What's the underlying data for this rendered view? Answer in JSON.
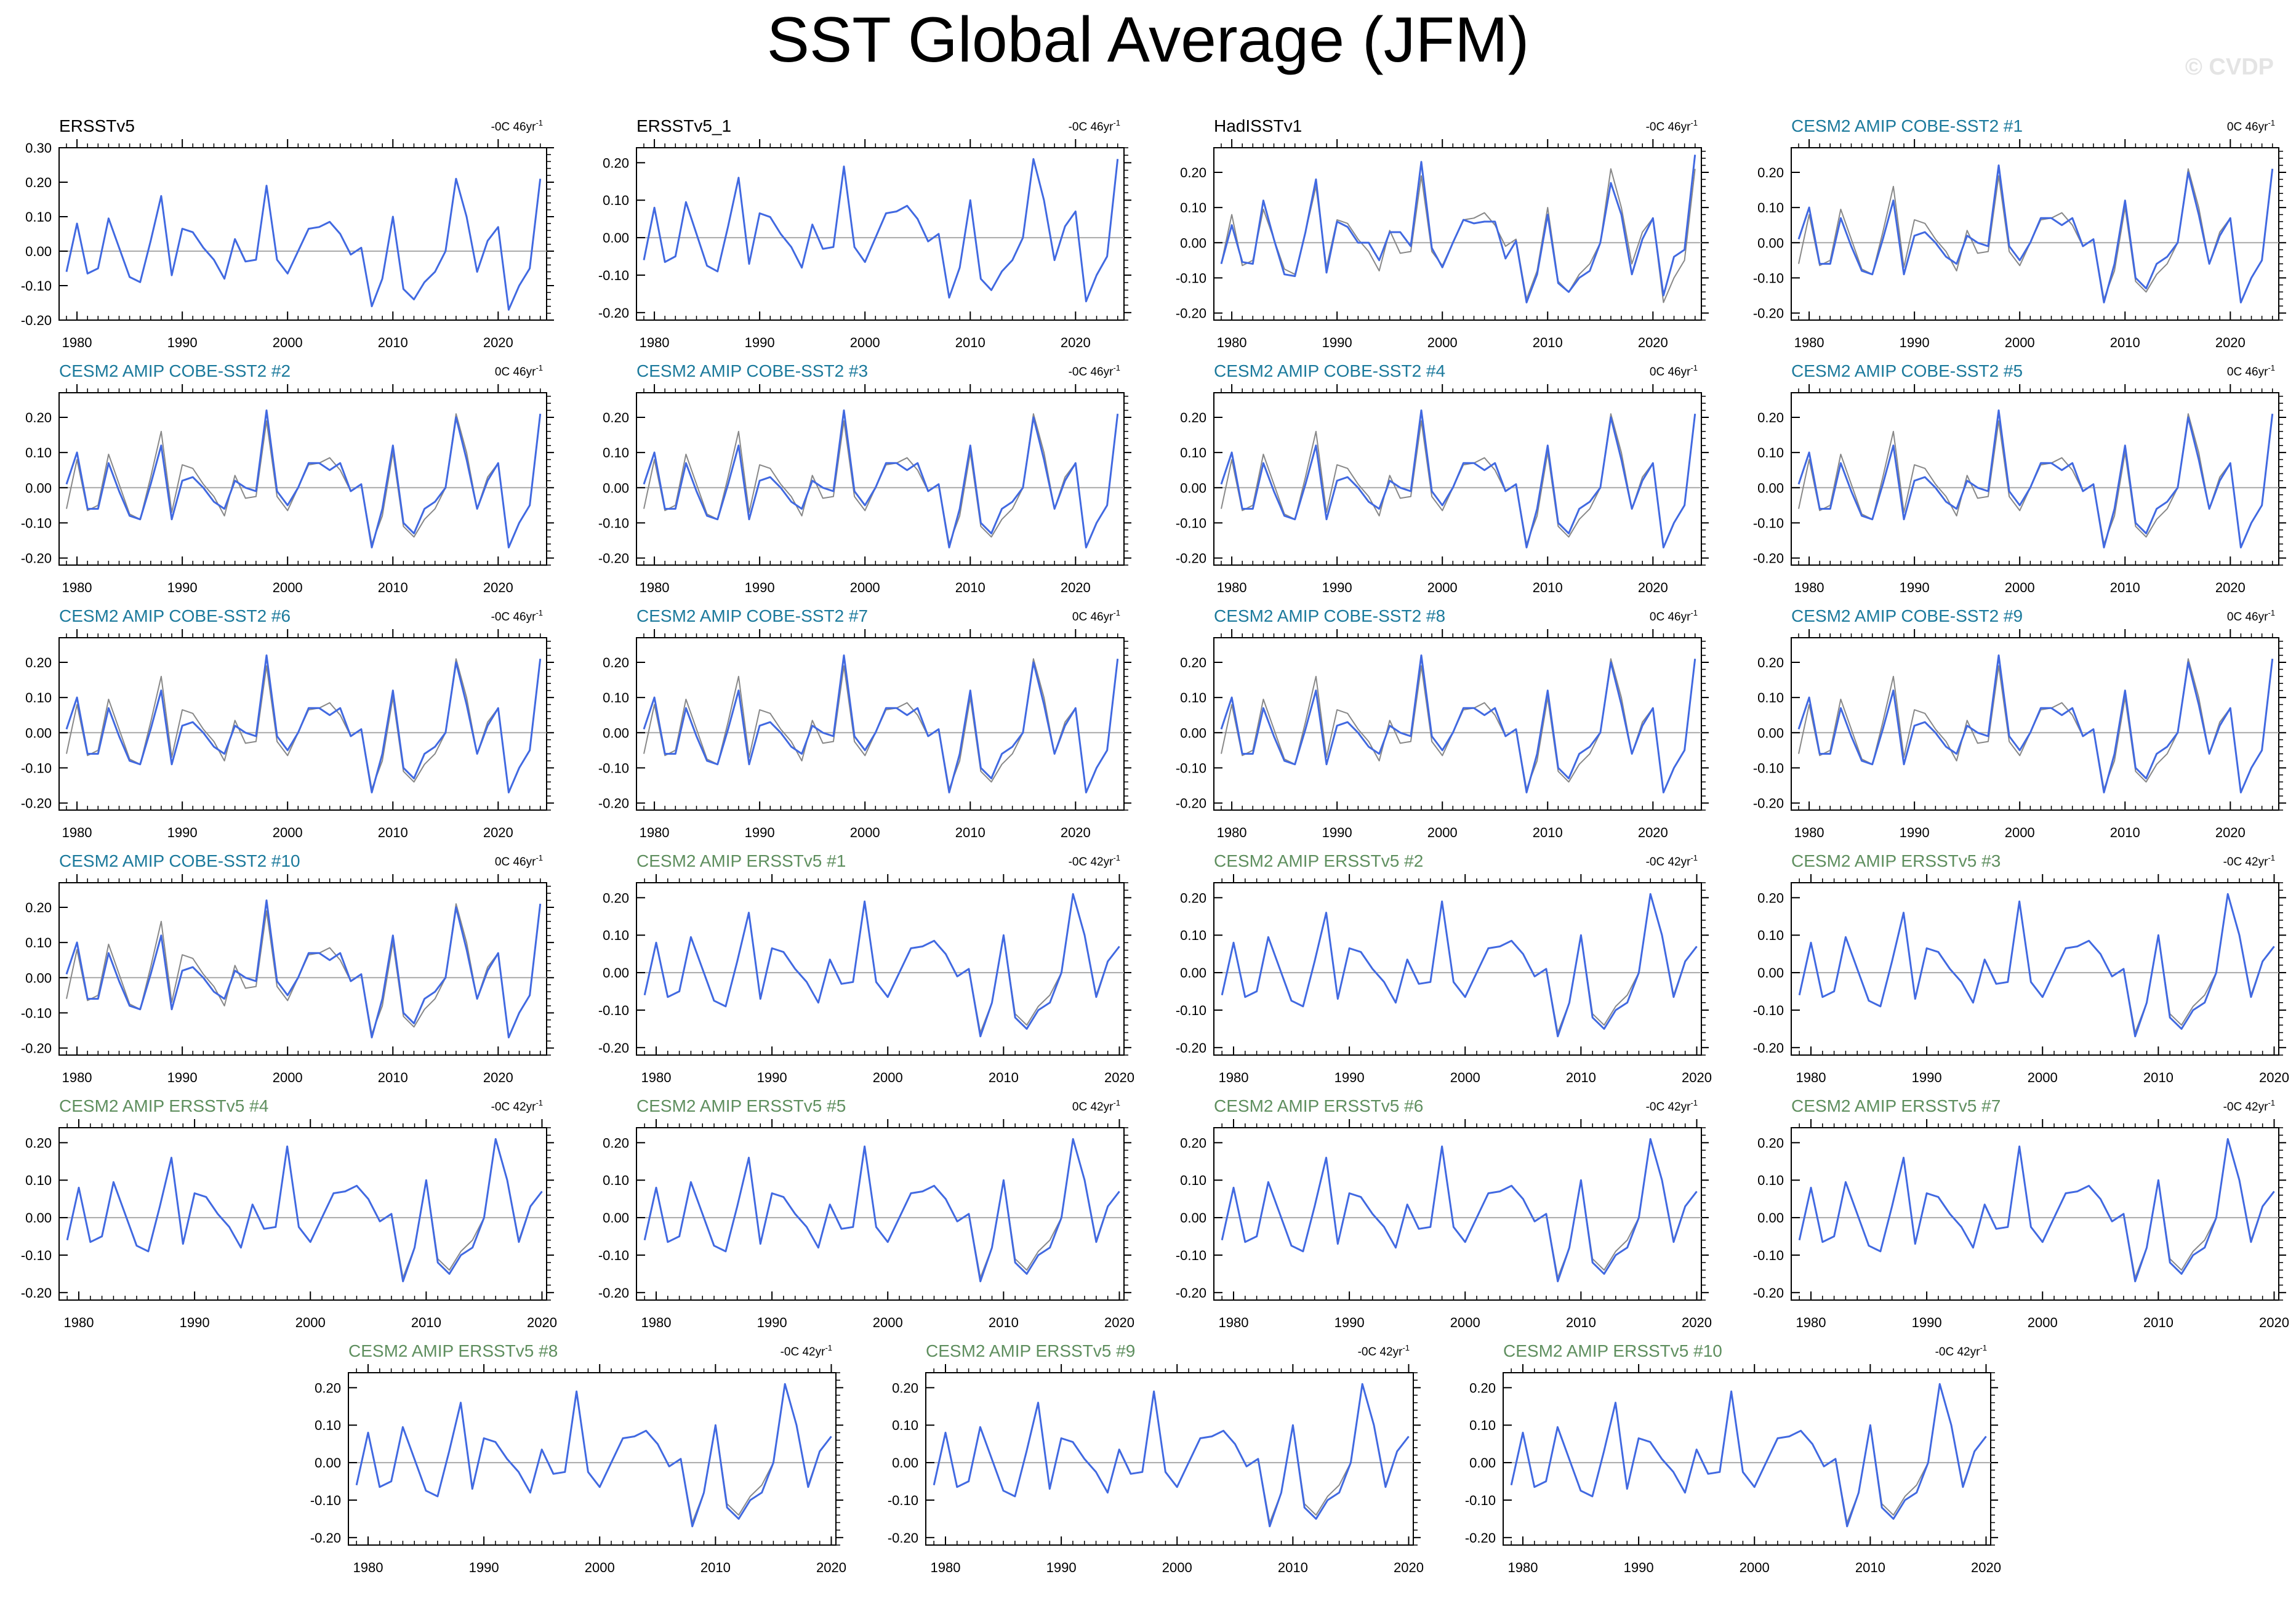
{
  "title": "SST Global Average (JFM)",
  "watermark": "© CVDP",
  "colors": {
    "observation_line": "#888888",
    "model_line": "#4169E1",
    "zero_line": "#aaaaaa",
    "title_obs": "#000000",
    "title_cobe": "#1c7a9c",
    "title_ersst": "#5f8f5f"
  },
  "chart_data": {
    "type": "line",
    "years_long": [
      1979,
      1980,
      1981,
      1982,
      1983,
      1984,
      1985,
      1986,
      1987,
      1988,
      1989,
      1990,
      1991,
      1992,
      1993,
      1994,
      1995,
      1996,
      1997,
      1998,
      1999,
      2000,
      2001,
      2002,
      2003,
      2004,
      2005,
      2006,
      2007,
      2008,
      2009,
      2010,
      2011,
      2012,
      2013,
      2014,
      2015,
      2016,
      2017,
      2018,
      2019,
      2020,
      2021,
      2022,
      2023,
      2024
    ],
    "years_short": [
      1979,
      1980,
      1981,
      1982,
      1983,
      1984,
      1985,
      1986,
      1987,
      1988,
      1989,
      1990,
      1991,
      1992,
      1993,
      1994,
      1995,
      1996,
      1997,
      1998,
      1999,
      2000,
      2001,
      2002,
      2003,
      2004,
      2005,
      2006,
      2007,
      2008,
      2009,
      2010,
      2011,
      2012,
      2013,
      2014,
      2015,
      2016,
      2017,
      2018,
      2019,
      2020
    ],
    "xticks": [
      1980,
      1990,
      2000,
      2010,
      2020
    ],
    "grid": false,
    "panels": [
      {
        "title": "ERSSTv5",
        "title_color": "obs",
        "trend": "-0C 46yr",
        "trend_sup": "-1",
        "years": "long",
        "ylim": [
          -0.2,
          0.3
        ],
        "yticks": [
          "0.30",
          "0.20",
          "0.10",
          "0.00",
          "-0.10",
          "-0.20"
        ],
        "overlay": "none",
        "variant": "obs"
      },
      {
        "title": "ERSSTv5_1",
        "title_color": "obs",
        "trend": "-0C 46yr",
        "trend_sup": "-1",
        "years": "long",
        "ylim": [
          -0.22,
          0.24
        ],
        "yticks": [
          "0.20",
          "0.10",
          "0.00",
          "-0.10",
          "-0.20"
        ],
        "overlay": "none",
        "variant": "obs"
      },
      {
        "title": "HadISSTv1",
        "title_color": "obs",
        "trend": "-0C 46yr",
        "trend_sup": "-1",
        "years": "long",
        "ylim": [
          -0.22,
          0.27
        ],
        "yticks": [
          "0.20",
          "0.10",
          "0.00",
          "-0.10",
          "-0.20"
        ],
        "overlay": "obs",
        "variant": "had"
      },
      {
        "title": "CESM2 AMIP COBE-SST2 #1",
        "title_color": "cobe",
        "trend": "0C 46yr",
        "trend_sup": "-1",
        "years": "long",
        "ylim": [
          -0.22,
          0.27
        ],
        "yticks": [
          "0.20",
          "0.10",
          "0.00",
          "-0.10",
          "-0.20"
        ],
        "overlay": "obs",
        "variant": "cobe"
      },
      {
        "title": "CESM2 AMIP COBE-SST2 #2",
        "title_color": "cobe",
        "trend": "0C 46yr",
        "trend_sup": "-1",
        "years": "long",
        "ylim": [
          -0.22,
          0.27
        ],
        "yticks": [
          "0.20",
          "0.10",
          "0.00",
          "-0.10",
          "-0.20"
        ],
        "overlay": "obs",
        "variant": "cobe"
      },
      {
        "title": "CESM2 AMIP COBE-SST2 #3",
        "title_color": "cobe",
        "trend": "-0C 46yr",
        "trend_sup": "-1",
        "years": "long",
        "ylim": [
          -0.22,
          0.27
        ],
        "yticks": [
          "0.20",
          "0.10",
          "0.00",
          "-0.10",
          "-0.20"
        ],
        "overlay": "obs",
        "variant": "cobe"
      },
      {
        "title": "CESM2 AMIP COBE-SST2 #4",
        "title_color": "cobe",
        "trend": "0C 46yr",
        "trend_sup": "-1",
        "years": "long",
        "ylim": [
          -0.22,
          0.27
        ],
        "yticks": [
          "0.20",
          "0.10",
          "0.00",
          "-0.10",
          "-0.20"
        ],
        "overlay": "obs",
        "variant": "cobe"
      },
      {
        "title": "CESM2 AMIP COBE-SST2 #5",
        "title_color": "cobe",
        "trend": "0C 46yr",
        "trend_sup": "-1",
        "years": "long",
        "ylim": [
          -0.22,
          0.27
        ],
        "yticks": [
          "0.20",
          "0.10",
          "0.00",
          "-0.10",
          "-0.20"
        ],
        "overlay": "obs",
        "variant": "cobe"
      },
      {
        "title": "CESM2 AMIP COBE-SST2 #6",
        "title_color": "cobe",
        "trend": "-0C 46yr",
        "trend_sup": "-1",
        "years": "long",
        "ylim": [
          -0.22,
          0.27
        ],
        "yticks": [
          "0.20",
          "0.10",
          "0.00",
          "-0.10",
          "-0.20"
        ],
        "overlay": "obs",
        "variant": "cobe"
      },
      {
        "title": "CESM2 AMIP COBE-SST2 #7",
        "title_color": "cobe",
        "trend": "0C 46yr",
        "trend_sup": "-1",
        "years": "long",
        "ylim": [
          -0.22,
          0.27
        ],
        "yticks": [
          "0.20",
          "0.10",
          "0.00",
          "-0.10",
          "-0.20"
        ],
        "overlay": "obs",
        "variant": "cobe"
      },
      {
        "title": "CESM2 AMIP COBE-SST2 #8",
        "title_color": "cobe",
        "trend": "0C 46yr",
        "trend_sup": "-1",
        "years": "long",
        "ylim": [
          -0.22,
          0.27
        ],
        "yticks": [
          "0.20",
          "0.10",
          "0.00",
          "-0.10",
          "-0.20"
        ],
        "overlay": "obs",
        "variant": "cobe"
      },
      {
        "title": "CESM2 AMIP COBE-SST2 #9",
        "title_color": "cobe",
        "trend": "0C 46yr",
        "trend_sup": "-1",
        "years": "long",
        "ylim": [
          -0.22,
          0.27
        ],
        "yticks": [
          "0.20",
          "0.10",
          "0.00",
          "-0.10",
          "-0.20"
        ],
        "overlay": "obs",
        "variant": "cobe"
      },
      {
        "title": "CESM2 AMIP COBE-SST2 #10",
        "title_color": "cobe",
        "trend": "0C 46yr",
        "trend_sup": "-1",
        "years": "long",
        "ylim": [
          -0.22,
          0.27
        ],
        "yticks": [
          "0.20",
          "0.10",
          "0.00",
          "-0.10",
          "-0.20"
        ],
        "overlay": "obs",
        "variant": "cobe"
      },
      {
        "title": "CESM2 AMIP ERSSTv5 #1",
        "title_color": "ersst",
        "trend": "-0C 42yr",
        "trend_sup": "-1",
        "years": "short",
        "ylim": [
          -0.22,
          0.24
        ],
        "yticks": [
          "0.20",
          "0.10",
          "0.00",
          "-0.10",
          "-0.20"
        ],
        "overlay": "obs",
        "variant": "ersst"
      },
      {
        "title": "CESM2 AMIP ERSSTv5 #2",
        "title_color": "ersst",
        "trend": "-0C 42yr",
        "trend_sup": "-1",
        "years": "short",
        "ylim": [
          -0.22,
          0.24
        ],
        "yticks": [
          "0.20",
          "0.10",
          "0.00",
          "-0.10",
          "-0.20"
        ],
        "overlay": "obs",
        "variant": "ersst"
      },
      {
        "title": "CESM2 AMIP ERSSTv5 #3",
        "title_color": "ersst",
        "trend": "-0C 42yr",
        "trend_sup": "-1",
        "years": "short",
        "ylim": [
          -0.22,
          0.24
        ],
        "yticks": [
          "0.20",
          "0.10",
          "0.00",
          "-0.10",
          "-0.20"
        ],
        "overlay": "obs",
        "variant": "ersst"
      },
      {
        "title": "CESM2 AMIP ERSSTv5 #4",
        "title_color": "ersst",
        "trend": "-0C 42yr",
        "trend_sup": "-1",
        "years": "short",
        "ylim": [
          -0.22,
          0.24
        ],
        "yticks": [
          "0.20",
          "0.10",
          "0.00",
          "-0.10",
          "-0.20"
        ],
        "overlay": "obs",
        "variant": "ersst"
      },
      {
        "title": "CESM2 AMIP ERSSTv5 #5",
        "title_color": "ersst",
        "trend": "0C 42yr",
        "trend_sup": "-1",
        "years": "short",
        "ylim": [
          -0.22,
          0.24
        ],
        "yticks": [
          "0.20",
          "0.10",
          "0.00",
          "-0.10",
          "-0.20"
        ],
        "overlay": "obs",
        "variant": "ersst"
      },
      {
        "title": "CESM2 AMIP ERSSTv5 #6",
        "title_color": "ersst",
        "trend": "-0C 42yr",
        "trend_sup": "-1",
        "years": "short",
        "ylim": [
          -0.22,
          0.24
        ],
        "yticks": [
          "0.20",
          "0.10",
          "0.00",
          "-0.10",
          "-0.20"
        ],
        "overlay": "obs",
        "variant": "ersst"
      },
      {
        "title": "CESM2 AMIP ERSSTv5 #7",
        "title_color": "ersst",
        "trend": "-0C 42yr",
        "trend_sup": "-1",
        "years": "short",
        "ylim": [
          -0.22,
          0.24
        ],
        "yticks": [
          "0.20",
          "0.10",
          "0.00",
          "-0.10",
          "-0.20"
        ],
        "overlay": "obs",
        "variant": "ersst"
      },
      {
        "title": "CESM2 AMIP ERSSTv5 #8",
        "title_color": "ersst",
        "trend": "-0C 42yr",
        "trend_sup": "-1",
        "years": "short",
        "ylim": [
          -0.22,
          0.24
        ],
        "yticks": [
          "0.20",
          "0.10",
          "0.00",
          "-0.10",
          "-0.20"
        ],
        "overlay": "obs",
        "variant": "ersst"
      },
      {
        "title": "CESM2 AMIP ERSSTv5 #9",
        "title_color": "ersst",
        "trend": "-0C 42yr",
        "trend_sup": "-1",
        "years": "short",
        "ylim": [
          -0.22,
          0.24
        ],
        "yticks": [
          "0.20",
          "0.10",
          "0.00",
          "-0.10",
          "-0.20"
        ],
        "overlay": "obs",
        "variant": "ersst"
      },
      {
        "title": "CESM2 AMIP ERSSTv5 #10",
        "title_color": "ersst",
        "trend": "-0C 42yr",
        "trend_sup": "-1",
        "years": "short",
        "ylim": [
          -0.22,
          0.24
        ],
        "yticks": [
          "0.20",
          "0.10",
          "0.00",
          "-0.10",
          "-0.20"
        ],
        "overlay": "obs",
        "variant": "ersst"
      }
    ],
    "series": {
      "obs": [
        -0.06,
        0.08,
        -0.065,
        -0.05,
        0.095,
        0.01,
        -0.075,
        -0.09,
        0.03,
        0.16,
        -0.07,
        0.065,
        0.055,
        0.01,
        -0.025,
        -0.08,
        0.035,
        -0.03,
        -0.025,
        0.19,
        -0.025,
        -0.065,
        0.0,
        0.065,
        0.07,
        0.085,
        0.05,
        -0.01,
        0.01,
        -0.16,
        -0.08,
        0.1,
        -0.11,
        -0.14,
        -0.09,
        -0.06,
        0.0,
        0.21,
        0.1,
        -0.06,
        0.03,
        0.07,
        -0.17,
        -0.1,
        -0.05,
        0.21
      ],
      "had": [
        -0.06,
        0.05,
        -0.055,
        -0.06,
        0.12,
        0.01,
        -0.09,
        -0.095,
        0.03,
        0.18,
        -0.085,
        0.06,
        0.045,
        0.0,
        0.0,
        -0.05,
        0.03,
        0.03,
        -0.01,
        0.23,
        -0.015,
        -0.07,
        0.0,
        0.065,
        0.055,
        0.06,
        0.06,
        -0.045,
        0.005,
        -0.17,
        -0.09,
        0.08,
        -0.115,
        -0.14,
        -0.1,
        -0.08,
        0.0,
        0.17,
        0.08,
        -0.09,
        0.01,
        0.07,
        -0.15,
        -0.04,
        -0.02,
        0.25
      ],
      "cobe": [
        0.01,
        0.1,
        -0.06,
        -0.06,
        0.07,
        -0.01,
        -0.08,
        -0.09,
        0.01,
        0.12,
        -0.09,
        0.02,
        0.03,
        0.0,
        -0.04,
        -0.06,
        0.02,
        0.0,
        -0.01,
        0.22,
        -0.01,
        -0.05,
        0.0,
        0.07,
        0.07,
        0.05,
        0.07,
        -0.01,
        0.01,
        -0.17,
        -0.06,
        0.12,
        -0.1,
        -0.13,
        -0.06,
        -0.04,
        0.0,
        0.2,
        0.08,
        -0.06,
        0.02,
        0.07,
        -0.17,
        -0.1,
        -0.05,
        0.21
      ],
      "ersst": [
        -0.06,
        0.08,
        -0.065,
        -0.05,
        0.095,
        0.01,
        -0.075,
        -0.09,
        0.03,
        0.16,
        -0.07,
        0.065,
        0.055,
        0.01,
        -0.025,
        -0.08,
        0.035,
        -0.03,
        -0.025,
        0.19,
        -0.025,
        -0.065,
        0.0,
        0.065,
        0.07,
        0.085,
        0.05,
        -0.01,
        0.01,
        -0.17,
        -0.08,
        0.1,
        -0.12,
        -0.15,
        -0.1,
        -0.08,
        0.0,
        0.21,
        0.1,
        -0.065,
        0.03,
        0.07
      ]
    }
  }
}
